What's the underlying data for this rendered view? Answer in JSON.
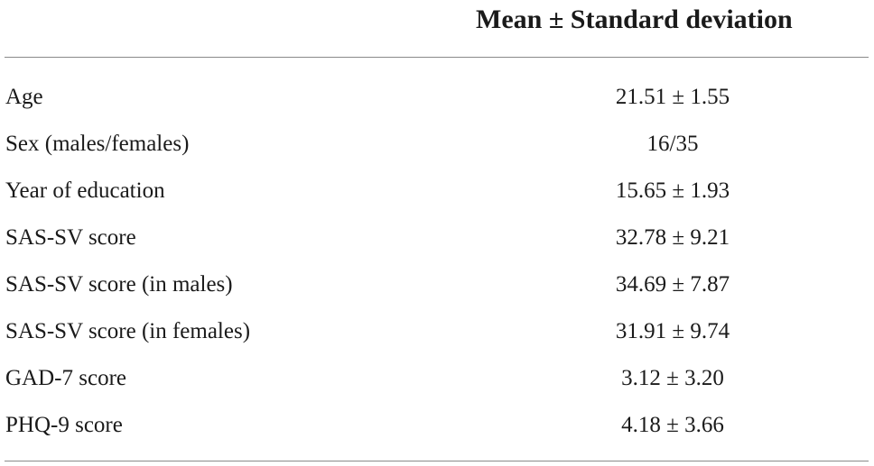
{
  "table": {
    "header": {
      "label_column": "",
      "value_column": "Mean ± Standard deviation"
    },
    "rows": [
      {
        "label": "Age",
        "value": "21.51 ± 1.55"
      },
      {
        "label": "Sex (males/females)",
        "value": "16/35"
      },
      {
        "label": "Year of education",
        "value": "15.65 ± 1.93"
      },
      {
        "label": "SAS-SV score",
        "value": "32.78 ± 9.21"
      },
      {
        "label": "SAS-SV score (in males)",
        "value": "34.69 ± 7.87"
      },
      {
        "label": "SAS-SV score (in females)",
        "value": "31.91 ± 9.74"
      },
      {
        "label": "GAD-7 score",
        "value": "3.12 ± 3.20"
      },
      {
        "label": "PHQ-9 score",
        "value": "4.18 ± 3.66"
      }
    ]
  }
}
